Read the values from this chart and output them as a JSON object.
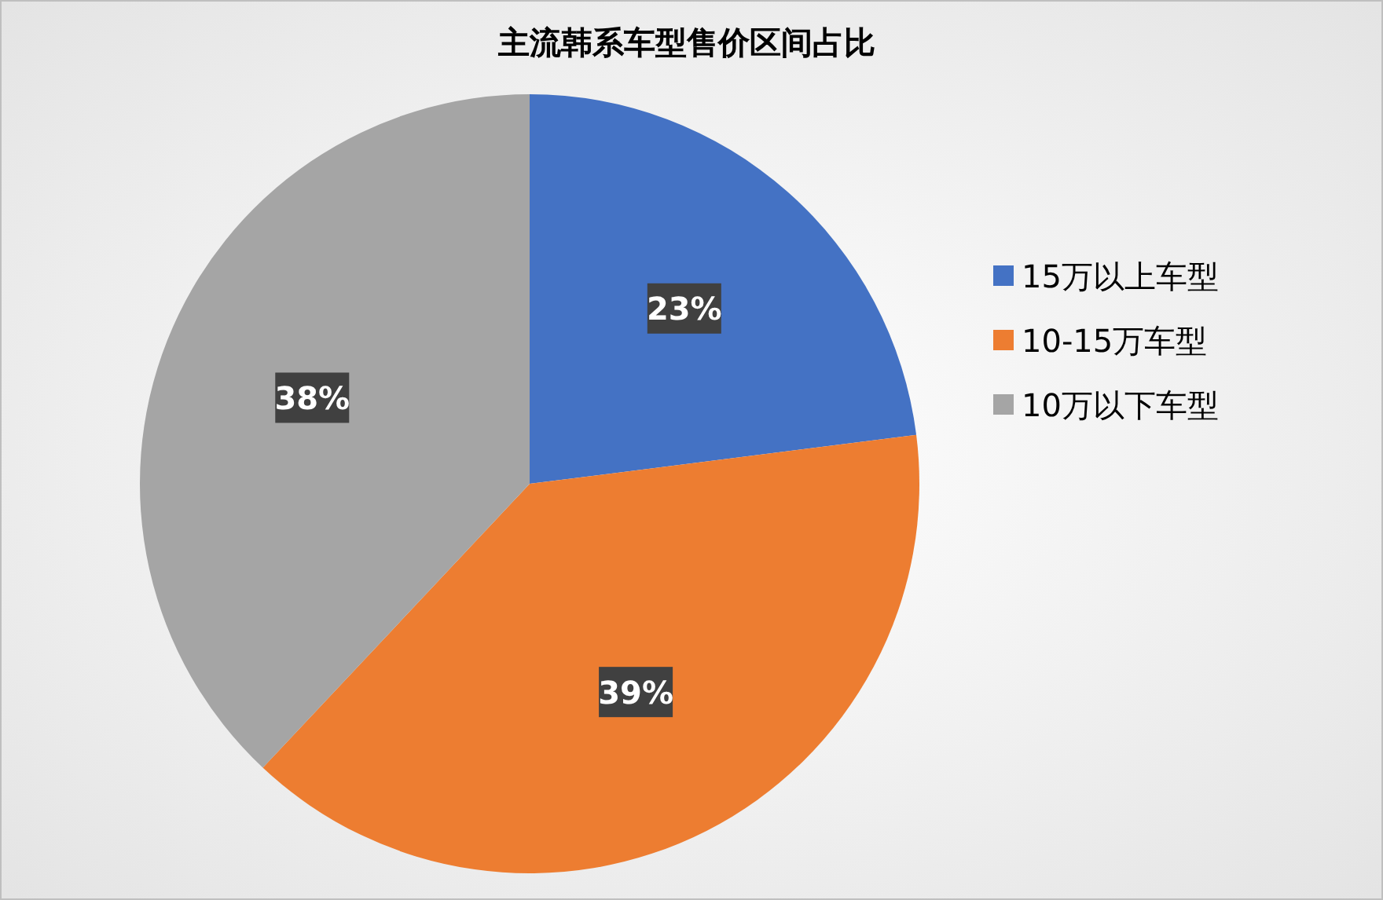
{
  "chart_data": {
    "type": "pie",
    "title": "主流韩系车型售价区间占比",
    "categories": [
      "15万以上车型",
      "10-15万车型",
      "10万以下车型"
    ],
    "values": [
      23,
      39,
      38
    ],
    "colors": [
      "#4472c4",
      "#ed7d31",
      "#a5a5a5"
    ],
    "value_labels": [
      "23%",
      "39%",
      "38%"
    ],
    "legend": "right"
  }
}
